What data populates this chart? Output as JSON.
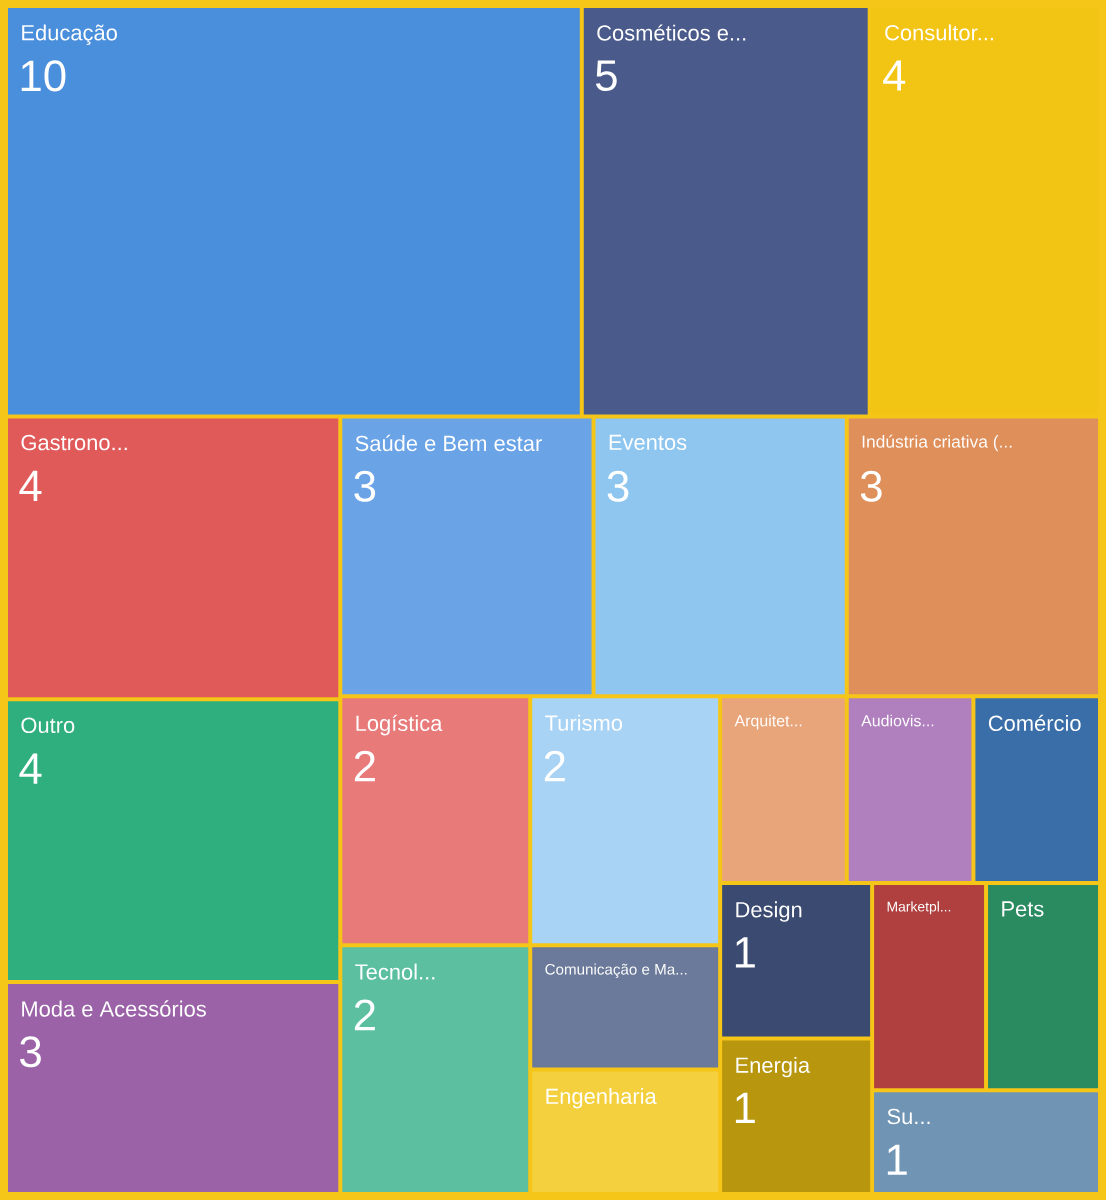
{
  "chart_data": {
    "type": "other",
    "categories": [
      "Educação",
      "Cosméticos e...",
      "Consultor...",
      "Gastrono...",
      "Outro",
      "Moda e Acessórios",
      "Saúde e Bem estar",
      "Eventos",
      "Indústria criativa (...",
      "Comunicação e Ma...",
      "Engenharia",
      "Logística",
      "Tecnol...",
      "Turismo",
      "Arquitet...",
      "Audiovis...",
      "Comércio",
      "Design",
      "Energia",
      "Marketpl...",
      "Pets",
      "Su..."
    ],
    "values": [
      10,
      5,
      4,
      4,
      4,
      3,
      3,
      3,
      3,
      null,
      null,
      2,
      2,
      2,
      null,
      null,
      null,
      1,
      1,
      null,
      null,
      1
    ],
    "value_labels": [
      "10",
      "5",
      "4",
      "4",
      "4",
      "3",
      "3",
      "3",
      "3",
      null,
      null,
      "2",
      "2",
      "2",
      null,
      null,
      null,
      "1",
      "1",
      null,
      null,
      "1"
    ],
    "colors": [
      "#4a8fdc",
      "#4a5a8a",
      "#f2c413",
      "#e05a5a",
      "#2eaf7d",
      "#9b62a8",
      "#6aa3e6",
      "#8ec6ef",
      "#df8f5a",
      "#6b7a9a",
      "#f4d03f",
      "#e87a7a",
      "#5cc0a0",
      "#a9d3f5",
      "#e8a57a",
      "#b07fbe",
      "#3a6ea8",
      "#3a4a70",
      "#b8960e",
      "#b04040",
      "#2a8a60",
      "#7094b4"
    ]
  }
}
